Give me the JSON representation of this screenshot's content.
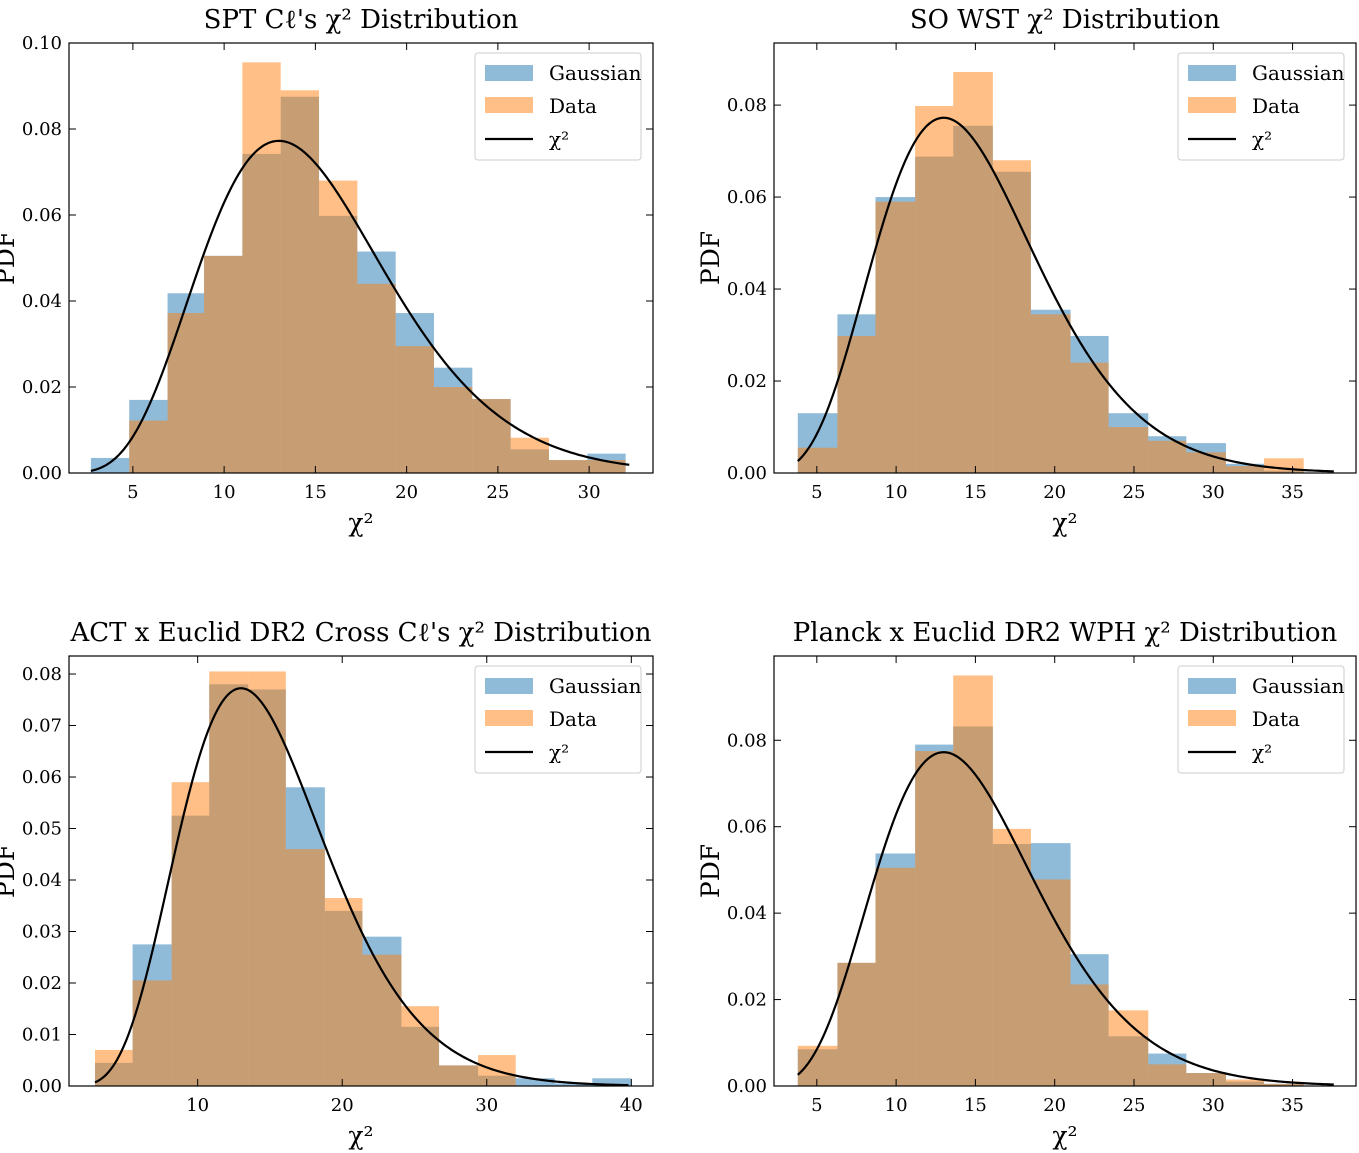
{
  "colors": {
    "gaussian": "#1f77b4",
    "data": "#ff7f0e",
    "curve": "#000000",
    "overlap": "#c09465"
  },
  "chart_data": [
    {
      "type": "bar",
      "title": "SPT Cℓ's χ² Distribution",
      "xlabel": "χ²",
      "ylabel": "PDF",
      "xlim": [
        1.5,
        33.5
      ],
      "ylim": [
        0,
        0.1
      ],
      "xticks": [
        5,
        10,
        15,
        20,
        25,
        30
      ],
      "yticks": [
        0.0,
        0.02,
        0.04,
        0.06,
        0.08,
        0.1
      ],
      "ytick_labels": [
        "0.00",
        "0.02",
        "0.04",
        "0.06",
        "0.08",
        "0.10"
      ],
      "legend_position": "upper right",
      "legend": [
        "Gaussian",
        "Data",
        "χ²"
      ],
      "bin_edges": [
        2.7,
        4.8,
        6.9,
        8.9,
        11.0,
        13.1,
        15.2,
        17.3,
        19.4,
        21.5,
        23.6,
        25.7,
        27.8,
        29.9,
        32.0
      ],
      "series": [
        {
          "name": "Gaussian",
          "values": [
            0.0035,
            0.017,
            0.0418,
            0.0505,
            0.0742,
            0.0875,
            0.0598,
            0.0515,
            0.0372,
            0.0245,
            0.0172,
            0.0055,
            0.003,
            0.0045
          ]
        },
        {
          "name": "Data",
          "values": [
            0.0,
            0.0122,
            0.0372,
            0.0505,
            0.0955,
            0.089,
            0.068,
            0.044,
            0.0295,
            0.02,
            0.0172,
            0.0082,
            0.003,
            0.003
          ]
        }
      ],
      "curve": {
        "name": "χ²",
        "dof": 15,
        "x_range": [
          2.7,
          32.2
        ]
      }
    },
    {
      "type": "bar",
      "title": "SO WST χ² Distribution",
      "xlabel": "χ²",
      "ylabel": "PDF",
      "xlim": [
        2.3,
        39.0
      ],
      "ylim": [
        0,
        0.0935
      ],
      "xticks": [
        5,
        10,
        15,
        20,
        25,
        30,
        35
      ],
      "yticks": [
        0.0,
        0.02,
        0.04,
        0.06,
        0.08
      ],
      "ytick_labels": [
        "0.00",
        "0.02",
        "0.04",
        "0.06",
        "0.08"
      ],
      "legend_position": "upper right",
      "legend": [
        "Gaussian",
        "Data",
        "χ²"
      ],
      "bin_edges": [
        3.8,
        6.3,
        8.7,
        11.2,
        13.6,
        16.1,
        18.5,
        21.0,
        23.4,
        25.9,
        28.3,
        30.8,
        33.2,
        35.7
      ],
      "series": [
        {
          "name": "Gaussian",
          "values": [
            0.013,
            0.0345,
            0.06,
            0.0688,
            0.0755,
            0.0655,
            0.0355,
            0.0298,
            0.013,
            0.008,
            0.0065,
            0.002,
            0.0005
          ]
        },
        {
          "name": "Data",
          "values": [
            0.0055,
            0.0298,
            0.059,
            0.0798,
            0.0872,
            0.068,
            0.0345,
            0.024,
            0.01,
            0.007,
            0.0045,
            0.0015,
            0.0032
          ]
        }
      ],
      "curve": {
        "name": "χ²",
        "dof": 15,
        "x_range": [
          3.8,
          37.6
        ]
      }
    },
    {
      "type": "bar",
      "title": "ACT x Euclid DR2 Cross Cℓ's χ² Distribution",
      "xlabel": "χ²",
      "ylabel": "PDF",
      "xlim": [
        1.1,
        41.5
      ],
      "ylim": [
        0,
        0.0835
      ],
      "xticks": [
        10,
        20,
        30,
        40
      ],
      "yticks": [
        0.0,
        0.01,
        0.02,
        0.03,
        0.04,
        0.05,
        0.06,
        0.07,
        0.08
      ],
      "ytick_labels": [
        "0.00",
        "0.01",
        "0.02",
        "0.03",
        "0.04",
        "0.05",
        "0.06",
        "0.07",
        "0.08"
      ],
      "legend_position": "upper right",
      "legend": [
        "Gaussian",
        "Data",
        "χ²"
      ],
      "bin_edges": [
        2.9,
        5.5,
        8.2,
        10.8,
        13.5,
        16.1,
        18.8,
        21.4,
        24.1,
        26.7,
        29.4,
        32.0,
        34.7,
        37.3,
        40.0
      ],
      "series": [
        {
          "name": "Gaussian",
          "values": [
            0.0045,
            0.0275,
            0.0525,
            0.078,
            0.077,
            0.058,
            0.034,
            0.029,
            0.0115,
            0.004,
            0.002,
            0.0015,
            0.0005,
            0.0015
          ]
        },
        {
          "name": "Data",
          "values": [
            0.007,
            0.0205,
            0.059,
            0.0805,
            0.0805,
            0.046,
            0.0365,
            0.0255,
            0.0155,
            0.004,
            0.006,
            0.0,
            0.0,
            0.0
          ]
        }
      ],
      "curve": {
        "name": "χ²",
        "dof": 15,
        "x_range": [
          2.9,
          39.8
        ]
      }
    },
    {
      "type": "bar",
      "title": "Planck x Euclid DR2 WPH χ² Distribution",
      "xlabel": "χ²",
      "ylabel": "PDF",
      "xlim": [
        2.3,
        39.0
      ],
      "ylim": [
        0,
        0.0995
      ],
      "xticks": [
        5,
        10,
        15,
        20,
        25,
        30,
        35
      ],
      "yticks": [
        0.0,
        0.02,
        0.04,
        0.06,
        0.08
      ],
      "ytick_labels": [
        "0.00",
        "0.02",
        "0.04",
        "0.06",
        "0.08"
      ],
      "legend_position": "upper right",
      "legend": [
        "Gaussian",
        "Data",
        "χ²"
      ],
      "bin_edges": [
        3.8,
        6.3,
        8.7,
        11.2,
        13.6,
        16.1,
        18.5,
        21.0,
        23.4,
        25.9,
        28.3,
        30.8,
        33.2,
        35.7
      ],
      "series": [
        {
          "name": "Gaussian",
          "values": [
            0.0085,
            0.0285,
            0.0538,
            0.079,
            0.0832,
            0.056,
            0.0562,
            0.0305,
            0.0115,
            0.0075,
            0.003,
            0.001,
            0.0005
          ]
        },
        {
          "name": "Data",
          "values": [
            0.0093,
            0.0285,
            0.0505,
            0.0775,
            0.095,
            0.0595,
            0.0478,
            0.0235,
            0.0175,
            0.005,
            0.003,
            0.0015,
            0.0005
          ]
        }
      ],
      "curve": {
        "name": "χ²",
        "dof": 15,
        "x_range": [
          3.8,
          37.6
        ]
      }
    }
  ]
}
